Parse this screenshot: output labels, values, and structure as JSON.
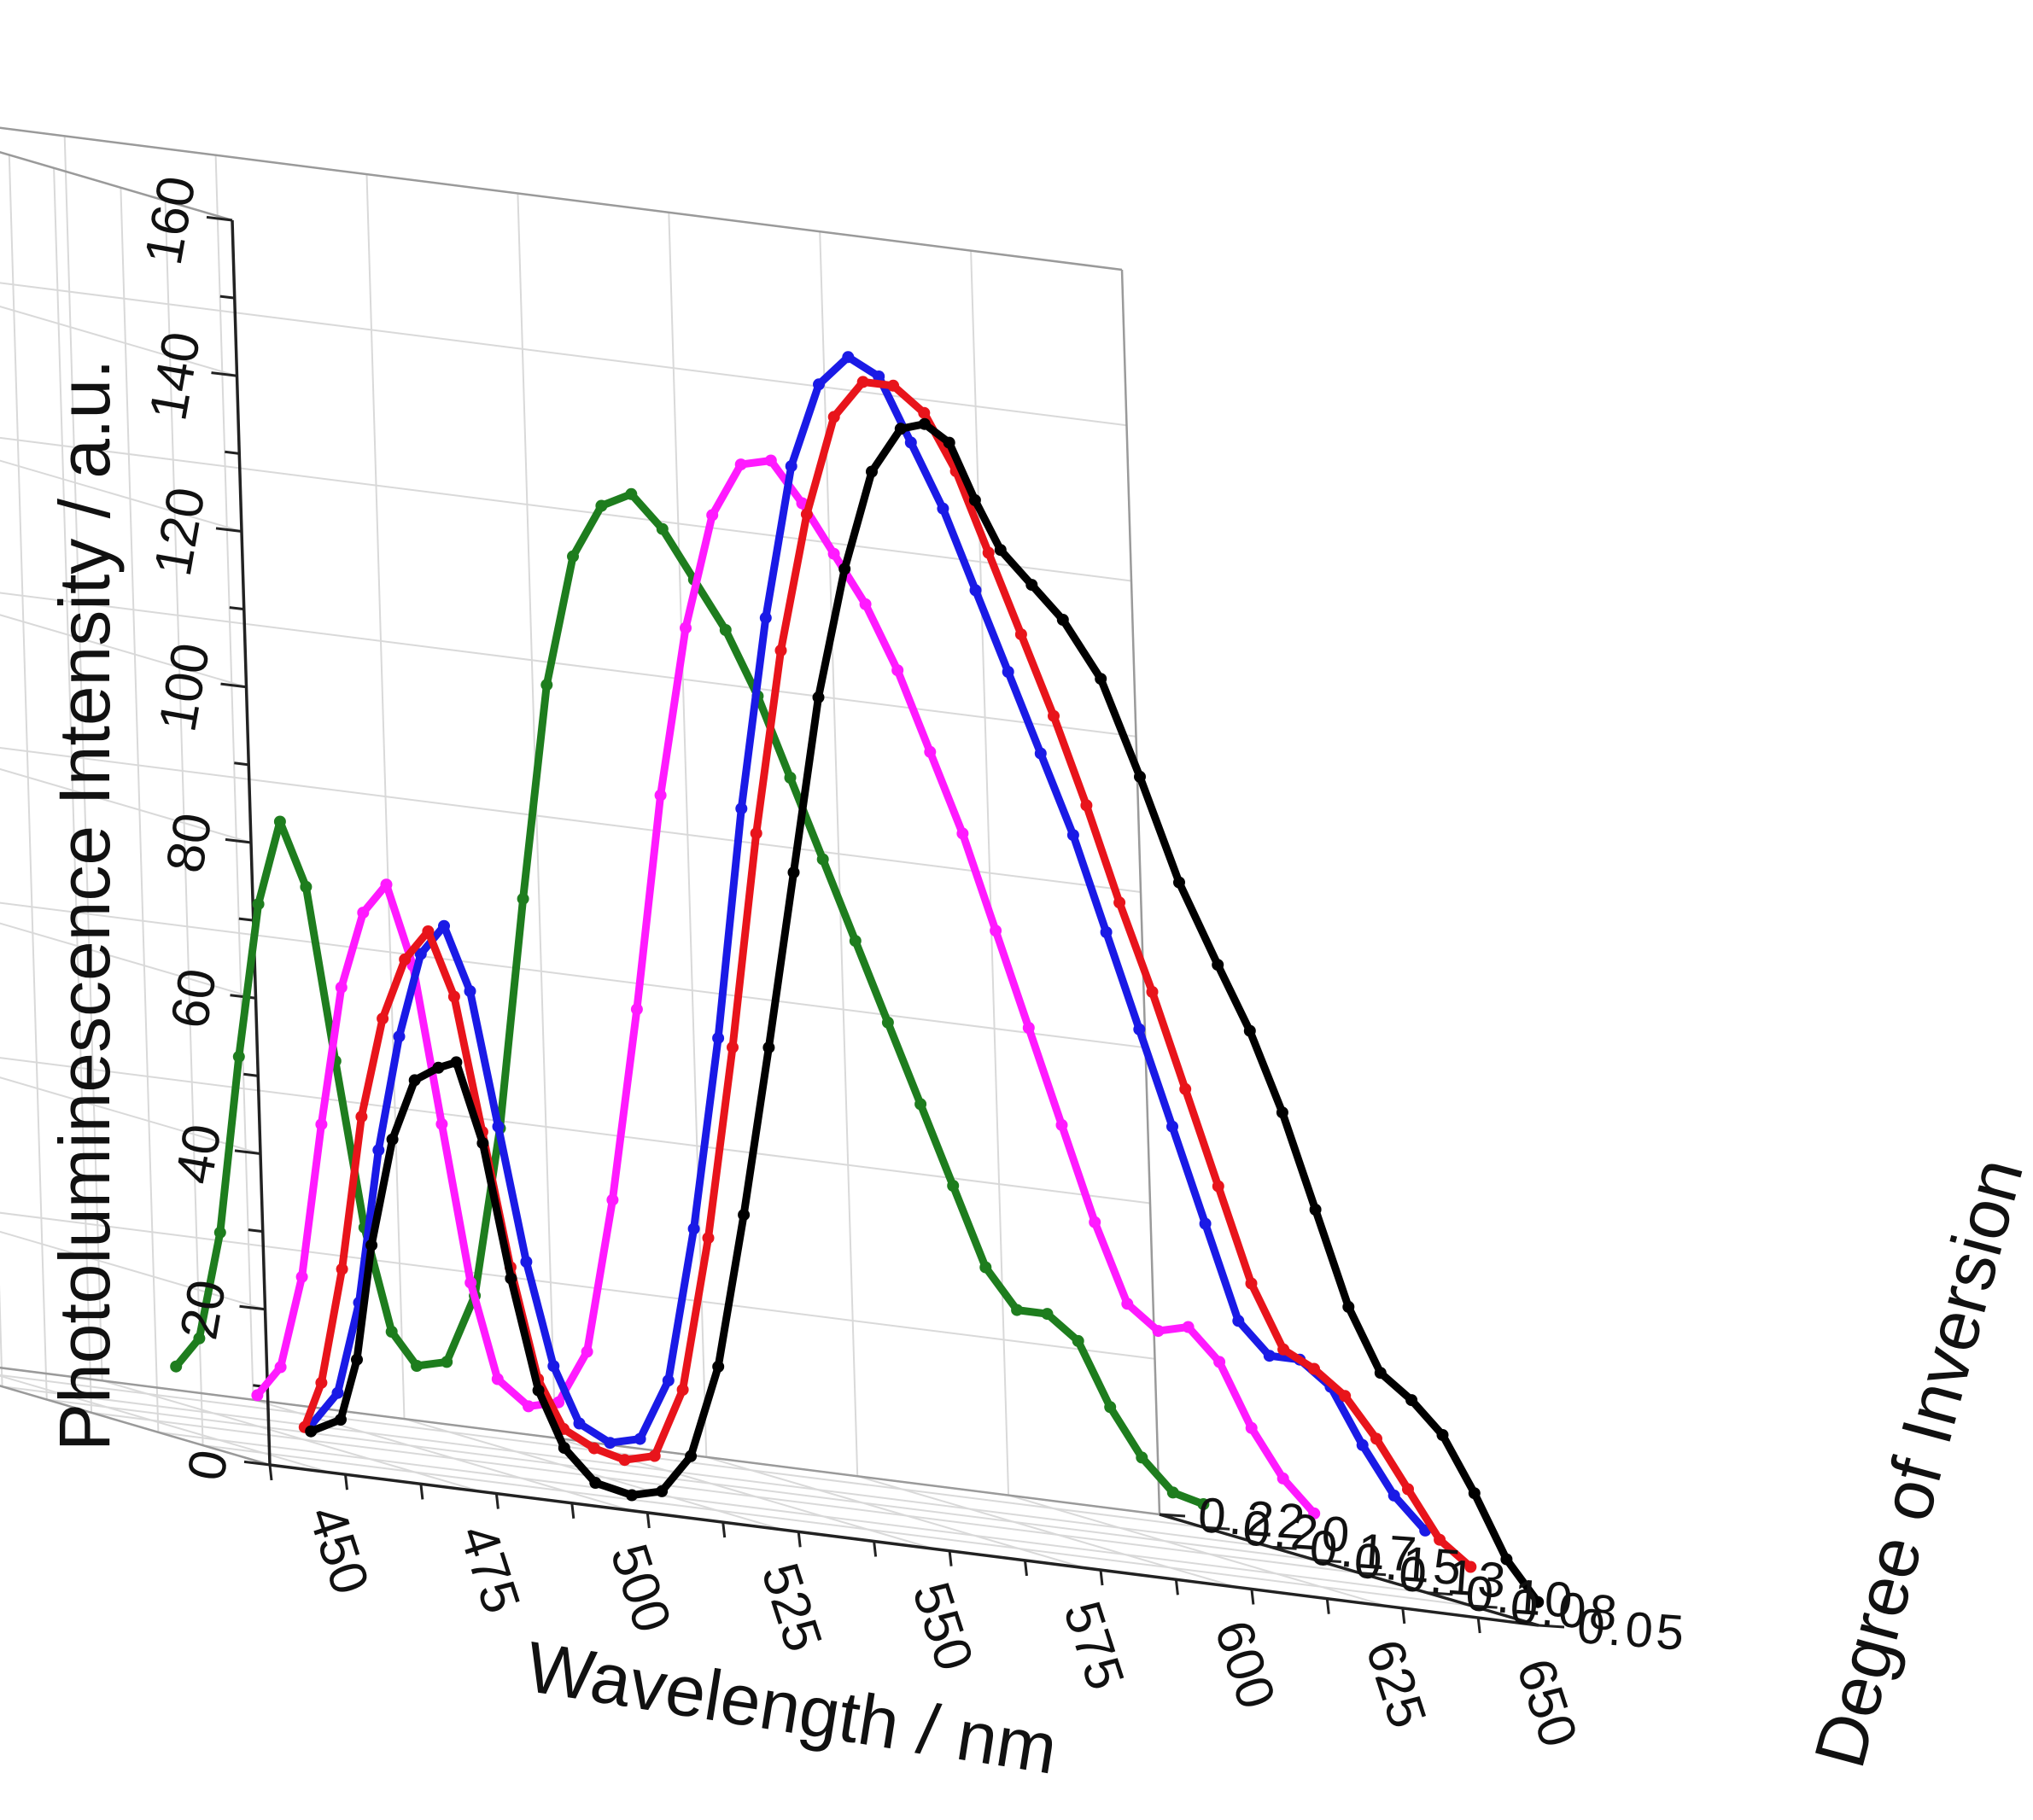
{
  "chart_data": {
    "type": "line",
    "title": "",
    "xlabel": "Wavelength / nm",
    "ylabel": "Photoluminescence Intensity / a.u.",
    "zlabel": "Degree of Inversion",
    "x_ticks": [
      "450",
      "475",
      "500",
      "525",
      "550",
      "575",
      "600",
      "625",
      "650"
    ],
    "y_ticks": [
      "0",
      "20",
      "40",
      "60",
      "80",
      "100",
      "120",
      "140",
      "160"
    ],
    "z_ticks": [
      "0.05",
      "0.08",
      "0.10",
      "0.13",
      "0.15",
      "0.17",
      "0.20",
      "0.22"
    ],
    "xlim": [
      440,
      650
    ],
    "ylim": [
      0,
      160
    ],
    "zlim": [
      0.05,
      0.22
    ],
    "grid": true,
    "colors": {
      "black": "#000000",
      "red": "#e8141b",
      "blue": "#1a1ae6",
      "magenta": "#ff1aff",
      "green": "#1e7d1e",
      "grid": "#d9d9d9",
      "axis": "#222222"
    },
    "series": [
      {
        "name": "0.05",
        "z": 0.05,
        "color": "black",
        "x": [
          447,
          452,
          455,
          458,
          462,
          466,
          470,
          473,
          477,
          481,
          485,
          489,
          494,
          500,
          505,
          510,
          515,
          520,
          525,
          530,
          535,
          540,
          545,
          550,
          554,
          558,
          562,
          566,
          571,
          576,
          582,
          588,
          594,
          600,
          605,
          610,
          615,
          620,
          625,
          630,
          635,
          640,
          645,
          650
        ],
        "y": [
          5,
          7,
          15,
          30,
          44,
          52,
          54,
          55,
          45,
          28,
          14,
          7,
          3,
          2,
          3,
          8,
          20,
          40,
          62,
          85,
          108,
          125,
          138,
          144,
          145,
          143,
          136,
          130,
          126,
          122,
          115,
          103,
          90,
          80,
          72,
          62,
          50,
          38,
          30,
          27,
          23,
          16,
          8,
          3
        ]
      },
      {
        "name": "0.08",
        "z": 0.08,
        "color": "red",
        "x": [
          457,
          460,
          464,
          468,
          472,
          476,
          480,
          484,
          488,
          492,
          496,
          500,
          505,
          510,
          515,
          520,
          525,
          530,
          535,
          540,
          545,
          550,
          555,
          560,
          565,
          570,
          575,
          580,
          585,
          590,
          595,
          600,
          605,
          610,
          615,
          620,
          625,
          630,
          635,
          640,
          645,
          650
        ],
        "y": [
          4,
          10,
          25,
          45,
          58,
          66,
          70,
          62,
          45,
          28,
          14,
          8,
          6,
          5,
          6,
          15,
          35,
          60,
          88,
          112,
          130,
          143,
          148,
          148,
          145,
          138,
          128,
          118,
          108,
          97,
          85,
          74,
          62,
          50,
          38,
          30,
          28,
          25,
          20,
          14,
          8,
          5
        ]
      },
      {
        "name": "0.10",
        "z": 0.1,
        "color": "blue",
        "x": [
          465,
          470,
          474,
          478,
          482,
          486,
          490,
          494,
          498,
          502,
          506,
          510,
          515,
          520,
          525,
          530,
          535,
          540,
          545,
          550,
          555,
          560,
          565,
          570,
          575,
          580,
          585,
          590,
          595,
          600,
          605,
          610,
          615,
          620,
          625,
          630,
          635,
          640,
          645,
          650
        ],
        "y": [
          3,
          8,
          20,
          40,
          55,
          66,
          70,
          62,
          45,
          28,
          15,
          8,
          6,
          7,
          15,
          35,
          60,
          90,
          115,
          135,
          146,
          150,
          148,
          140,
          132,
          122,
          112,
          102,
          92,
          80,
          68,
          56,
          44,
          32,
          28,
          28,
          25,
          18,
          12,
          8
        ]
      },
      {
        "name": "0.15",
        "z": 0.15,
        "color": "magenta",
        "x": [
          475,
          479,
          483,
          487,
          491,
          495,
          499,
          503,
          507,
          511,
          515,
          520,
          525,
          530,
          535,
          540,
          545,
          550,
          555,
          560,
          565,
          570,
          575,
          580,
          585,
          590,
          595,
          600,
          605,
          610,
          615,
          620,
          625,
          630,
          635,
          640,
          645,
          650
        ],
        "y": [
          4,
          8,
          20,
          40,
          58,
          68,
          72,
          62,
          42,
          22,
          10,
          7,
          8,
          15,
          35,
          60,
          88,
          110,
          125,
          132,
          133,
          128,
          122,
          116,
          108,
          98,
          88,
          76,
          64,
          52,
          40,
          30,
          27,
          28,
          24,
          16,
          10,
          6
        ]
      },
      {
        "name": "0.20",
        "z": 0.2,
        "color": "green",
        "x": [
          480,
          484,
          488,
          492,
          496,
          500,
          504,
          508,
          512,
          516,
          520,
          525,
          530,
          535,
          540,
          545,
          550,
          555,
          560,
          565,
          570,
          575,
          580,
          585,
          590,
          595,
          600,
          605,
          610,
          615,
          620,
          625,
          630,
          635,
          640,
          645,
          650
        ],
        "y": [
          4,
          8,
          22,
          45,
          65,
          76,
          68,
          46,
          25,
          12,
          8,
          9,
          18,
          40,
          70,
          98,
          115,
          122,
          124,
          120,
          114,
          108,
          100,
          90,
          80,
          70,
          60,
          50,
          40,
          30,
          25,
          25,
          22,
          14,
          8,
          4,
          3
        ]
      }
    ]
  }
}
